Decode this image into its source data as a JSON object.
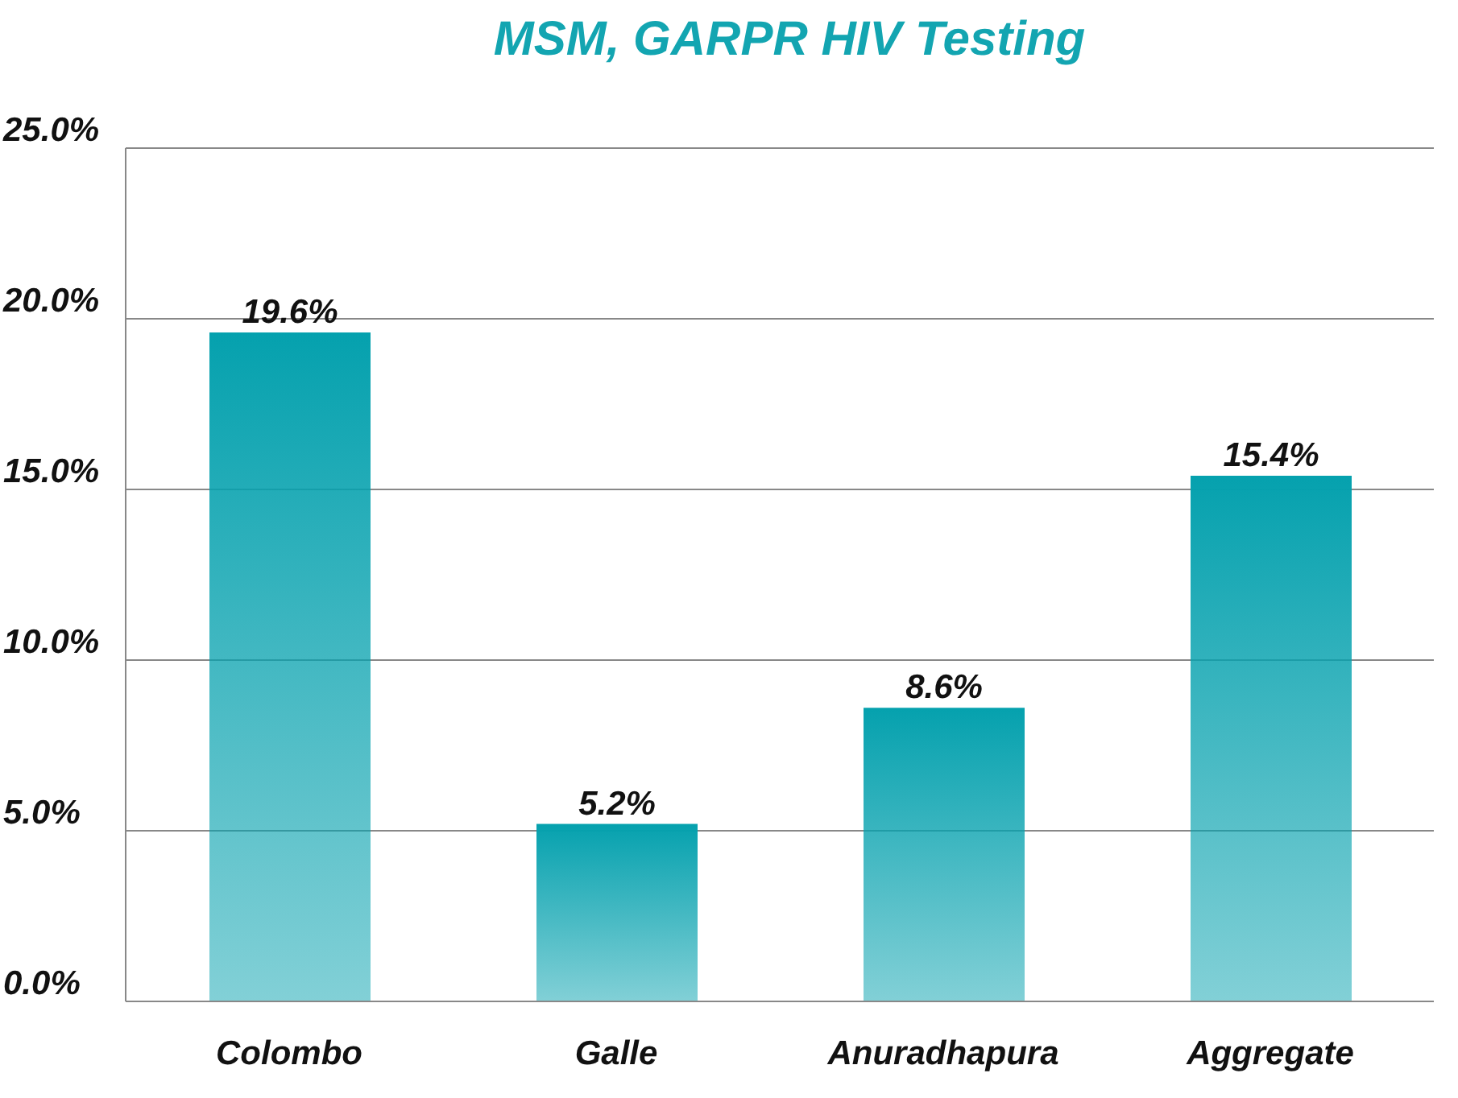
{
  "chart_data": {
    "type": "bar",
    "title": "MSM, GARPR HIV Testing",
    "categories": [
      "Colombo",
      "Galle",
      "Anuradhapura",
      "Aggregate"
    ],
    "values": [
      19.6,
      5.2,
      8.6,
      15.4
    ],
    "value_labels": [
      "19.6%",
      "5.2%",
      "8.6%",
      "15.4%"
    ],
    "color": "#05a1ae",
    "ylim": [
      0,
      25
    ],
    "yticks": [
      {
        "value": 0,
        "label": "0.0%"
      },
      {
        "value": 5,
        "label": "5.0%"
      },
      {
        "value": 10,
        "label": "10.0%"
      },
      {
        "value": 15,
        "label": "15.0%"
      },
      {
        "value": 20,
        "label": "20.0%"
      },
      {
        "value": 25,
        "label": "25.0%"
      }
    ],
    "grid": "y",
    "legend": false
  }
}
